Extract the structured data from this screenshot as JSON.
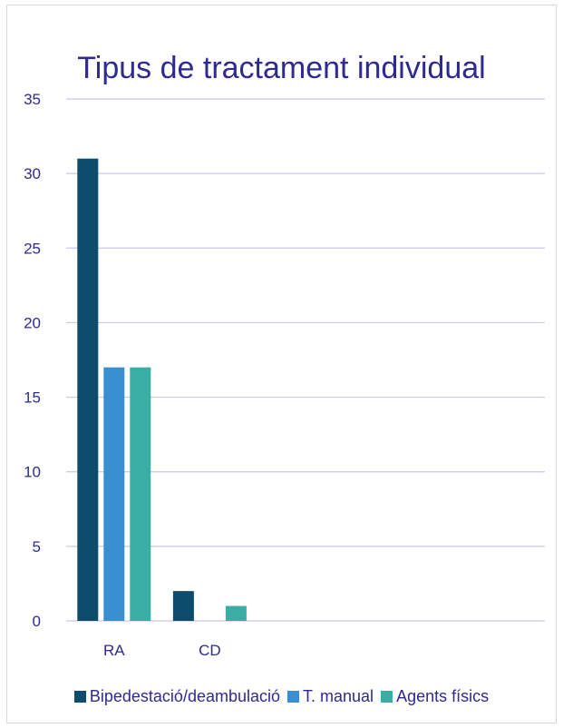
{
  "chart_data": {
    "type": "bar",
    "title": "Tipus de tractament individual",
    "categories": [
      "RA",
      "CD",
      "",
      "",
      ""
    ],
    "series": [
      {
        "name": "Bipedestació/deambulació",
        "values": [
          31,
          2,
          null,
          null,
          null
        ],
        "color": "#0e4c6e"
      },
      {
        "name": "T. manual",
        "values": [
          17,
          0,
          null,
          null,
          null
        ],
        "color": "#3a8fd0"
      },
      {
        "name": "Agents físics",
        "values": [
          17,
          1,
          null,
          null,
          null
        ],
        "color": "#3aada5"
      }
    ],
    "ylim": [
      0,
      35
    ],
    "yticks": [
      0,
      5,
      10,
      15,
      20,
      25,
      30,
      35
    ],
    "grid": true,
    "legend_position": "bottom",
    "text_color": "#2e2a8f",
    "grid_color": "#c9c6ea"
  }
}
